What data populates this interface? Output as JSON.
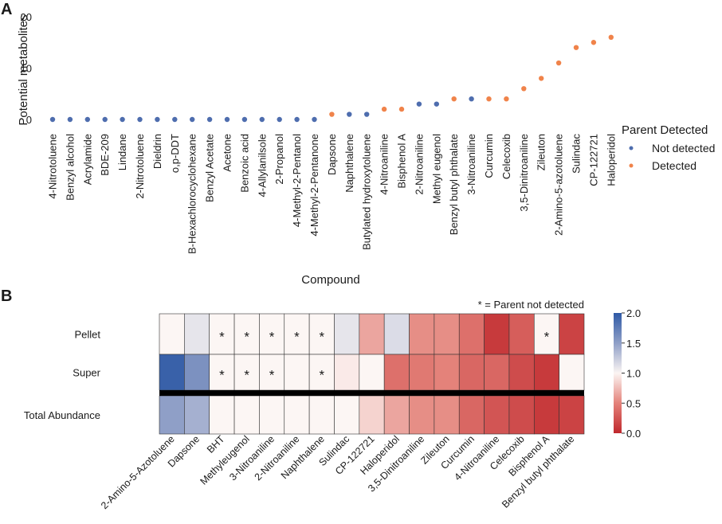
{
  "panel_a_letter": "A",
  "panel_b_letter": "B",
  "chart_data": [
    {
      "type": "scatter",
      "xlabel": "Compound",
      "ylabel": "Potential metabolites",
      "ylim": [
        0,
        20
      ],
      "yticks": [
        0,
        10,
        20
      ],
      "legend": {
        "title": "Parent Detected",
        "placement": "right",
        "entries": [
          {
            "name": "Not detected",
            "color": "#4e6dae"
          },
          {
            "name": "Detected",
            "color": "#f0834a"
          }
        ]
      },
      "points": [
        {
          "x": "4-Nitrotoluene",
          "y": 0,
          "group": "Not detected"
        },
        {
          "x": "Benzyl alcohol",
          "y": 0,
          "group": "Not detected"
        },
        {
          "x": "Acrylamide",
          "y": 0,
          "group": "Not detected"
        },
        {
          "x": "BDE-209",
          "y": 0,
          "group": "Not detected"
        },
        {
          "x": "Lindane",
          "y": 0,
          "group": "Not detected"
        },
        {
          "x": "2-Nitrotoluene",
          "y": 0,
          "group": "Not detected"
        },
        {
          "x": "Dieldrin",
          "y": 0,
          "group": "Not detected"
        },
        {
          "x": "o,p-DDT",
          "y": 0,
          "group": "Not detected"
        },
        {
          "x": "B-Hexachlorocyclohexane",
          "y": 0,
          "group": "Not detected"
        },
        {
          "x": "Benzyl Acetate",
          "y": 0,
          "group": "Not detected"
        },
        {
          "x": "Acetone",
          "y": 0,
          "group": "Not detected"
        },
        {
          "x": "Benzoic acid",
          "y": 0,
          "group": "Not detected"
        },
        {
          "x": "4-Allylanilsole",
          "y": 0,
          "group": "Not detected"
        },
        {
          "x": "2-Propanol",
          "y": 0,
          "group": "Not detected"
        },
        {
          "x": "4-Methyl-2-Pentanol",
          "y": 0,
          "group": "Not detected"
        },
        {
          "x": "4-Methyl-2-Pentanone",
          "y": 0,
          "group": "Not detected"
        },
        {
          "x": "Dapsone",
          "y": 1,
          "group": "Detected"
        },
        {
          "x": "Naphthalene",
          "y": 1,
          "group": "Not detected"
        },
        {
          "x": "Butylated hydroxytoluene",
          "y": 1,
          "group": "Not detected"
        },
        {
          "x": "4-Nitroaniline",
          "y": 2,
          "group": "Detected"
        },
        {
          "x": "Bisphenol A",
          "y": 2,
          "group": "Detected"
        },
        {
          "x": "2-Nitroaniline",
          "y": 3,
          "group": "Not detected"
        },
        {
          "x": "Methyl eugenol",
          "y": 3,
          "group": "Not detected"
        },
        {
          "x": "Benzyl butyl phthalate",
          "y": 4,
          "group": "Detected"
        },
        {
          "x": "3-Nitroaniline",
          "y": 4,
          "group": "Not detected"
        },
        {
          "x": "Curcumin",
          "y": 4,
          "group": "Detected"
        },
        {
          "x": "Celecoxib",
          "y": 4,
          "group": "Detected"
        },
        {
          "x": "3,5-Dinitroaniline",
          "y": 6,
          "group": "Detected"
        },
        {
          "x": "Zileuton",
          "y": 8,
          "group": "Detected"
        },
        {
          "x": "2-Amino-5-azotoluene",
          "y": 11,
          "group": "Detected"
        },
        {
          "x": "Sulindac",
          "y": 14,
          "group": "Detected"
        },
        {
          "x": "CP-122721",
          "y": 15,
          "group": "Detected"
        },
        {
          "x": "Haloperidol",
          "y": 16,
          "group": "Detected"
        }
      ]
    },
    {
      "type": "heatmap",
      "annotation": "* = Parent not detected",
      "columns": [
        "2-Amino-5-Azotoluene",
        "Dapsone",
        "BHT",
        "Methyleugenol",
        "3-Nitroaniline",
        "2-Nitroaniline",
        "Naphthalene",
        "Sulindac",
        "CP-122721",
        "Haloperidol",
        "3,5-Dinitroaniline",
        "Zileuton",
        "Curcumin",
        "4-Nitroaniline",
        "Celecoxib",
        "Bisphenol A",
        "Benzyl butyl phthalate"
      ],
      "rows": [
        {
          "name": "Pellet",
          "values": [
            1.0,
            1.1,
            1.0,
            1.0,
            1.0,
            1.0,
            1.0,
            1.1,
            0.65,
            1.15,
            0.55,
            0.55,
            0.4,
            0.1,
            0.3,
            1.0,
            0.15
          ],
          "stars": [
            false,
            false,
            true,
            true,
            true,
            true,
            true,
            false,
            false,
            false,
            false,
            false,
            false,
            false,
            false,
            true,
            false
          ]
        },
        {
          "name": "Super",
          "values": [
            1.95,
            1.6,
            1.0,
            1.0,
            1.0,
            1.0,
            1.0,
            0.95,
            1.0,
            0.4,
            0.45,
            0.5,
            0.35,
            0.35,
            0.2,
            0.1,
            1.0
          ],
          "stars": [
            false,
            false,
            true,
            true,
            true,
            false,
            true,
            false,
            false,
            false,
            false,
            false,
            false,
            false,
            false,
            false,
            false
          ]
        },
        {
          "name": "Total Abundance",
          "values": [
            1.5,
            1.4,
            1.0,
            1.0,
            1.0,
            1.0,
            1.0,
            1.0,
            0.85,
            0.65,
            0.55,
            0.55,
            0.35,
            0.25,
            0.2,
            0.1,
            0.15
          ],
          "stars": [
            false,
            false,
            false,
            false,
            false,
            false,
            false,
            false,
            false,
            false,
            false,
            false,
            false,
            false,
            false,
            false,
            false
          ]
        }
      ],
      "colorbar": {
        "min": 0.0,
        "max": 2.0,
        "ticks": [
          "0.0",
          "0.5",
          "1.0",
          "1.5",
          "2.0"
        ]
      }
    }
  ]
}
